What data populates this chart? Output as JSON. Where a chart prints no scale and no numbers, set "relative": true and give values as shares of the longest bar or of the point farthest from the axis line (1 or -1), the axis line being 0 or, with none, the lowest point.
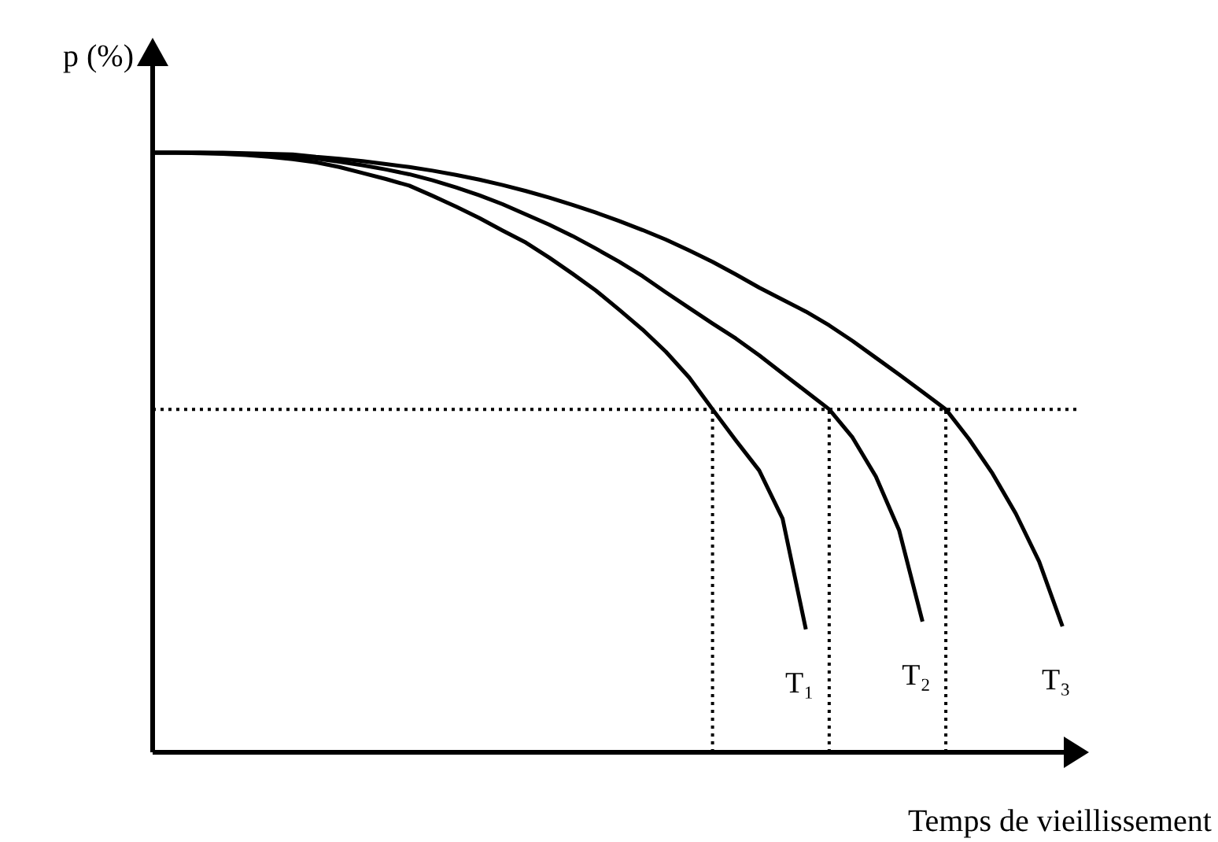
{
  "chart_data": {
    "type": "line",
    "relative": true,
    "xlabel": "Temps de vieillissement",
    "ylabel": "p (%)",
    "line_style": "solid",
    "categories": [
      null,
      null,
      null,
      null,
      null,
      null,
      null,
      null,
      null,
      null,
      null,
      null,
      null,
      null,
      null,
      null,
      null,
      null,
      null,
      null,
      null,
      null,
      null,
      null,
      null,
      null,
      null,
      null,
      null,
      null,
      null,
      null,
      null,
      null,
      null,
      null,
      null,
      null,
      null,
      null,
      null
    ],
    "series": [
      {
        "name": "T₁",
        "color": "#000000",
        "values": [
          1,
          1,
          0.999,
          0.998,
          0.996,
          0.993,
          0.989,
          0.984,
          0.976,
          0.966,
          0.956,
          0.945,
          0.928,
          0.91,
          0.891,
          0.87,
          0.85,
          0.825,
          0.798,
          0.77,
          0.738,
          0.705,
          0.668,
          0.625,
          0.572,
          0.52,
          0.47,
          0.39,
          0.205,
          null,
          null,
          null,
          null,
          null,
          null,
          null,
          null,
          null,
          null,
          null,
          null
        ]
      },
      {
        "name": "T₂",
        "color": "#000000",
        "values": [
          1,
          1,
          1,
          0.999,
          0.998,
          0.996,
          0.993,
          0.99,
          0.985,
          0.979,
          0.972,
          0.964,
          0.954,
          0.942,
          0.929,
          0.914,
          0.897,
          0.88,
          0.861,
          0.84,
          0.818,
          0.794,
          0.767,
          0.741,
          0.715,
          0.69,
          0.662,
          0.632,
          0.602,
          0.572,
          0.525,
          0.46,
          0.37,
          0.218,
          null,
          null,
          null,
          null,
          null,
          null,
          null
        ]
      },
      {
        "name": "T₃",
        "color": "#000000",
        "values": [
          1,
          1,
          1,
          1,
          0.999,
          0.998,
          0.997,
          0.993,
          0.99,
          0.986,
          0.981,
          0.976,
          0.97,
          0.963,
          0.955,
          0.946,
          0.936,
          0.925,
          0.913,
          0.9,
          0.886,
          0.871,
          0.855,
          0.837,
          0.818,
          0.797,
          0.775,
          0.755,
          0.735,
          0.712,
          0.686,
          0.658,
          0.63,
          0.601,
          0.572,
          0.522,
          0.465,
          0.398,
          0.318,
          0.21,
          null
        ]
      }
    ],
    "ref_lines": [
      {
        "axis": "y",
        "value": 0.572,
        "line_style": "dotted",
        "color": "#000000"
      }
    ]
  }
}
